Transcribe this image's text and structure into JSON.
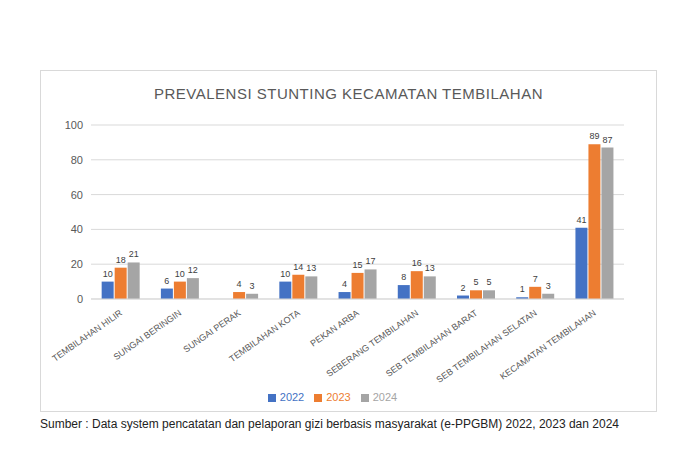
{
  "chart_data": {
    "type": "bar",
    "title": "PREVALENSI STUNTING KECAMATAN TEMBILAHAN",
    "categories": [
      "TEMBILAHAN HILIR",
      "SUNGAI BERINGIN",
      "SUNGAI PERAK",
      "TEMBILAHAN KOTA",
      "PEKAN ARBA",
      "SEBERANG TEMBILAHAN",
      "SEB TEMBILAHAN BARAT",
      "SEB TEMBILAHAN SELATAN",
      "KECAMATAN TEMBILAHAN"
    ],
    "series": [
      {
        "name": "2022",
        "color": "#4472c4",
        "values": [
          10,
          6,
          0,
          10,
          4,
          8,
          2,
          1,
          41
        ]
      },
      {
        "name": "2023",
        "color": "#ed7d31",
        "values": [
          18,
          10,
          4,
          14,
          15,
          16,
          5,
          7,
          89
        ]
      },
      {
        "name": "2024",
        "color": "#a5a5a5",
        "values": [
          21,
          12,
          3,
          13,
          17,
          13,
          5,
          3,
          87
        ]
      }
    ],
    "ylim": [
      0,
      100
    ],
    "yticks": [
      0,
      20,
      40,
      60,
      80,
      100
    ],
    "grid": true,
    "data_labels": true,
    "legend": "bottom"
  },
  "source": "Sumber : Data system pencatatan dan pelaporan gizi berbasis masyarakat (e-PPGBM) 2022, 2023 dan 2024"
}
